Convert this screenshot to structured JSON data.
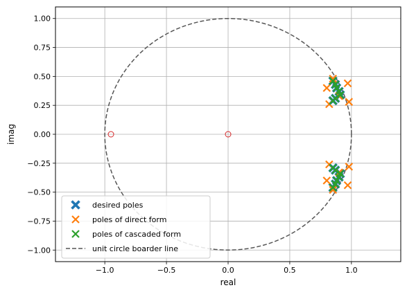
{
  "chart_data": {
    "type": "scatter",
    "xlabel": "real",
    "ylabel": "imag",
    "xlim": [
      -1.4,
      1.4
    ],
    "ylim": [
      -1.1,
      1.1
    ],
    "grid": true,
    "legend_position": "lower-left",
    "x_ticks": [
      -1.0,
      -0.5,
      0.0,
      0.5,
      1.0
    ],
    "x_tick_labels": [
      "−1.0",
      "−0.5",
      "0.0",
      "0.5",
      "1.0"
    ],
    "y_ticks": [
      1.0,
      0.75,
      0.5,
      0.25,
      0.0,
      -0.25,
      -0.5,
      -0.75,
      -1.0
    ],
    "y_tick_labels": [
      "1.00",
      "0.75",
      "0.50",
      "0.25",
      "0.00",
      "−0.25",
      "−0.50",
      "−0.75",
      "−1.00"
    ],
    "series": [
      {
        "name": "desired poles",
        "marker": "X-filled",
        "color": "#1f77b4",
        "x": [
          0.85,
          0.87,
          0.88,
          0.9,
          0.91,
          0.87,
          0.85,
          0.85,
          0.87,
          0.88,
          0.9,
          0.91,
          0.87,
          0.85
        ],
        "y": [
          0.46,
          0.43,
          0.4,
          0.37,
          0.34,
          0.31,
          0.29,
          -0.46,
          -0.43,
          -0.4,
          -0.37,
          -0.34,
          -0.31,
          -0.29
        ]
      },
      {
        "name": "poles of direct form",
        "marker": "x",
        "color": "#ff7f0e",
        "x": [
          0.85,
          0.97,
          0.8,
          0.9,
          0.98,
          0.82,
          0.85,
          0.97,
          0.8,
          0.9,
          0.98,
          0.82
        ],
        "y": [
          0.48,
          0.44,
          0.4,
          0.33,
          0.28,
          0.26,
          -0.48,
          -0.44,
          -0.4,
          -0.33,
          -0.28,
          -0.26
        ]
      },
      {
        "name": "poles of cascaded form",
        "marker": "x",
        "color": "#2ca02c",
        "x": [
          0.85,
          0.87,
          0.88,
          0.9,
          0.91,
          0.87,
          0.85,
          0.85,
          0.87,
          0.88,
          0.9,
          0.91,
          0.87,
          0.85
        ],
        "y": [
          0.46,
          0.43,
          0.4,
          0.37,
          0.34,
          0.31,
          0.29,
          -0.46,
          -0.43,
          -0.4,
          -0.37,
          -0.34,
          -0.31,
          -0.29
        ]
      },
      {
        "name": "zeros",
        "marker": "o-open",
        "color": "#d62728",
        "x": [
          -0.95,
          0.0
        ],
        "y": [
          0.0,
          0.0
        ]
      },
      {
        "name": "unit circle boarder line",
        "marker": "dashed-line",
        "color": "#555555",
        "radius": 1.0
      }
    ],
    "legend": [
      {
        "label": "desired poles",
        "marker": "X-filled",
        "color": "#1f77b4"
      },
      {
        "label": "poles of direct form",
        "marker": "x",
        "color": "#ff7f0e"
      },
      {
        "label": "poles of cascaded form",
        "marker": "x",
        "color": "#2ca02c"
      },
      {
        "label": "unit circle boarder line",
        "marker": "dashed-line",
        "color": "#555555"
      }
    ]
  }
}
